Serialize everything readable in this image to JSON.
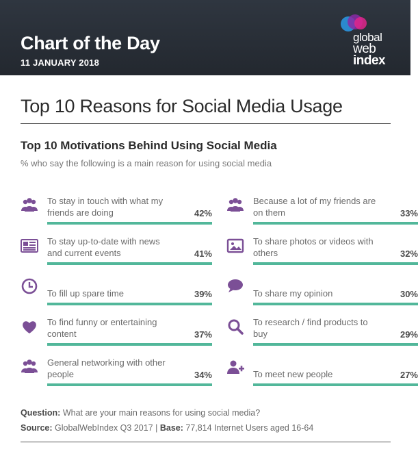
{
  "header": {
    "title": "Chart of the Day",
    "date": "11 JANUARY 2018",
    "logo": {
      "line1": "global",
      "line2": "web",
      "line3": "index"
    }
  },
  "main_title": "Top 10 Reasons for Social Media Usage",
  "chart_data": {
    "type": "bar",
    "title": "Top 10 Motivations Behind Using Social Media",
    "subtitle": "% who say the following is a main reason for using social media",
    "ylim": [
      0,
      100
    ],
    "unit": "%",
    "categories": [
      "To stay in touch with what my friends are doing",
      "To stay up-to-date with news and current events",
      "To fill up spare time",
      "To find funny or entertaining content",
      "General networking with other people",
      "Because a lot of my friends are on them",
      "To share photos or videos with others",
      "To share my opinion",
      "To research / find products to buy",
      "To meet new people"
    ],
    "values": [
      42,
      41,
      39,
      37,
      34,
      33,
      32,
      30,
      29,
      27
    ],
    "value_labels": [
      "42%",
      "41%",
      "39%",
      "37%",
      "34%",
      "33%",
      "32%",
      "30%",
      "29%",
      "27%"
    ],
    "icons": [
      "group-icon",
      "newspaper-icon",
      "clock-icon",
      "heart-icon",
      "group-icon",
      "group-icon",
      "image-icon",
      "speech-bubble-icon",
      "search-icon",
      "add-user-icon"
    ],
    "bar_color": "#52b79a",
    "track_color": "#e0e0e0",
    "icon_color": "#7b4f96"
  },
  "footer": {
    "question_label": "Question:",
    "question_text": " What are your main reasons for using social media?",
    "source_label": "Source:",
    "source_text": " GlobalWebIndex Q3 2017  |  ",
    "base_label": "Base:",
    "base_text": " 77,814 Internet Users aged 16-64"
  }
}
